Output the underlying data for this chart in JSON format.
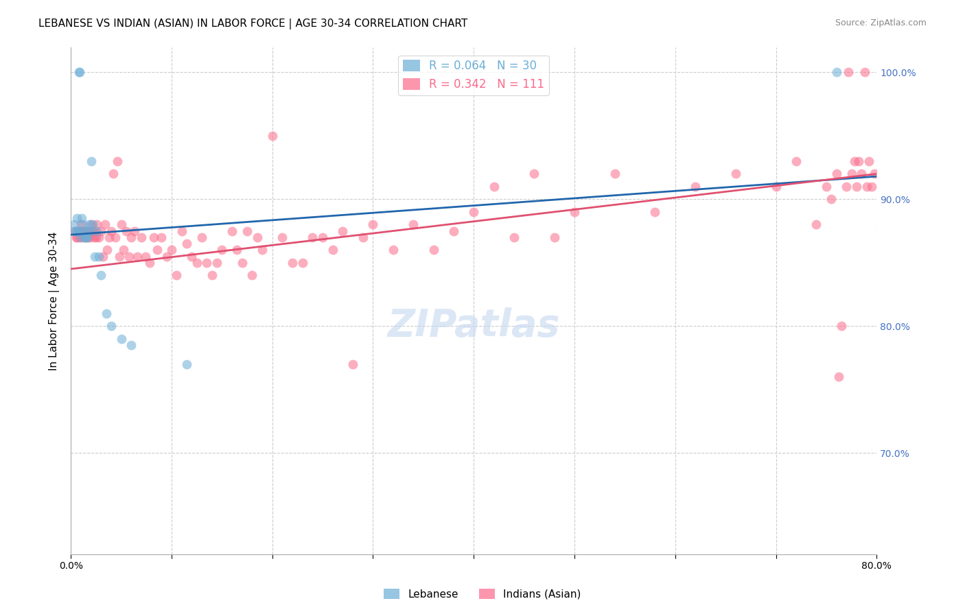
{
  "title": "LEBANESE VS INDIAN (ASIAN) IN LABOR FORCE | AGE 30-34 CORRELATION CHART",
  "source": "Source: ZipAtlas.com",
  "ylabel": "In Labor Force | Age 30-34",
  "xlim": [
    0.0,
    0.8
  ],
  "ylim": [
    0.62,
    1.02
  ],
  "x_ticks": [
    0.0,
    0.1,
    0.2,
    0.3,
    0.4,
    0.5,
    0.6,
    0.7,
    0.8
  ],
  "y_ticks": [
    0.7,
    0.8,
    0.9,
    1.0
  ],
  "y_tick_labels": [
    "70.0%",
    "80.0%",
    "90.0%",
    "100.0%"
  ],
  "watermark": "ZIPatlas",
  "blue_color": "#6baed6",
  "pink_color": "#fb6a8a",
  "blue_line_color": "#2166ac",
  "pink_line_color": "#e05070",
  "leb_line_x": [
    0.0,
    0.8
  ],
  "leb_line_y": [
    0.872,
    0.918
  ],
  "ind_line_x": [
    0.0,
    0.8
  ],
  "ind_line_y": [
    0.845,
    0.92
  ],
  "lebanese_x": [
    0.003,
    0.004,
    0.005,
    0.006,
    0.007,
    0.008,
    0.009,
    0.009,
    0.01,
    0.011,
    0.012,
    0.013,
    0.014,
    0.015,
    0.016,
    0.017,
    0.018,
    0.019,
    0.02,
    0.022,
    0.024,
    0.026,
    0.028,
    0.03,
    0.035,
    0.04,
    0.05,
    0.06,
    0.115,
    0.76
  ],
  "lebanese_y": [
    0.88,
    0.875,
    0.875,
    0.885,
    0.875,
    1.0,
    1.0,
    0.875,
    0.87,
    0.885,
    0.88,
    0.875,
    0.87,
    0.87,
    0.87,
    0.875,
    0.88,
    0.875,
    0.93,
    0.88,
    0.855,
    0.875,
    0.855,
    0.84,
    0.81,
    0.8,
    0.79,
    0.785,
    0.77,
    1.0
  ],
  "indian_x": [
    0.004,
    0.005,
    0.006,
    0.007,
    0.008,
    0.009,
    0.01,
    0.011,
    0.012,
    0.013,
    0.014,
    0.015,
    0.016,
    0.017,
    0.018,
    0.019,
    0.02,
    0.021,
    0.022,
    0.023,
    0.024,
    0.025,
    0.026,
    0.028,
    0.03,
    0.032,
    0.034,
    0.036,
    0.038,
    0.04,
    0.042,
    0.044,
    0.046,
    0.048,
    0.05,
    0.052,
    0.055,
    0.058,
    0.06,
    0.063,
    0.066,
    0.07,
    0.074,
    0.078,
    0.082,
    0.086,
    0.09,
    0.095,
    0.1,
    0.105,
    0.11,
    0.115,
    0.12,
    0.125,
    0.13,
    0.135,
    0.14,
    0.145,
    0.15,
    0.16,
    0.165,
    0.17,
    0.175,
    0.18,
    0.185,
    0.19,
    0.2,
    0.21,
    0.22,
    0.23,
    0.24,
    0.25,
    0.26,
    0.27,
    0.28,
    0.29,
    0.3,
    0.32,
    0.34,
    0.36,
    0.38,
    0.4,
    0.42,
    0.44,
    0.46,
    0.48,
    0.5,
    0.54,
    0.58,
    0.62,
    0.66,
    0.7,
    0.72,
    0.74,
    0.75,
    0.755,
    0.76,
    0.762,
    0.765,
    0.77,
    0.772,
    0.775,
    0.778,
    0.78,
    0.782,
    0.785,
    0.788,
    0.79,
    0.792,
    0.795,
    0.798
  ],
  "indian_y": [
    0.875,
    0.87,
    0.87,
    0.875,
    0.875,
    0.87,
    0.88,
    0.875,
    0.87,
    0.875,
    0.87,
    0.875,
    0.875,
    0.87,
    0.875,
    0.87,
    0.88,
    0.875,
    0.875,
    0.87,
    0.875,
    0.87,
    0.88,
    0.87,
    0.875,
    0.855,
    0.88,
    0.86,
    0.87,
    0.875,
    0.92,
    0.87,
    0.93,
    0.855,
    0.88,
    0.86,
    0.875,
    0.855,
    0.87,
    0.875,
    0.855,
    0.87,
    0.855,
    0.85,
    0.87,
    0.86,
    0.87,
    0.855,
    0.86,
    0.84,
    0.875,
    0.865,
    0.855,
    0.85,
    0.87,
    0.85,
    0.84,
    0.85,
    0.86,
    0.875,
    0.86,
    0.85,
    0.875,
    0.84,
    0.87,
    0.86,
    0.95,
    0.87,
    0.85,
    0.85,
    0.87,
    0.87,
    0.86,
    0.875,
    0.77,
    0.87,
    0.88,
    0.86,
    0.88,
    0.86,
    0.875,
    0.89,
    0.91,
    0.87,
    0.92,
    0.87,
    0.89,
    0.92,
    0.89,
    0.91,
    0.92,
    0.91,
    0.93,
    0.88,
    0.91,
    0.9,
    0.92,
    0.76,
    0.8,
    0.91,
    1.0,
    0.92,
    0.93,
    0.91,
    0.93,
    0.92,
    1.0,
    0.91,
    0.93,
    0.91,
    0.92
  ],
  "title_fontsize": 11,
  "axis_label_fontsize": 11,
  "tick_fontsize": 10,
  "legend_fontsize": 12,
  "watermark_fontsize": 40,
  "source_fontsize": 9
}
